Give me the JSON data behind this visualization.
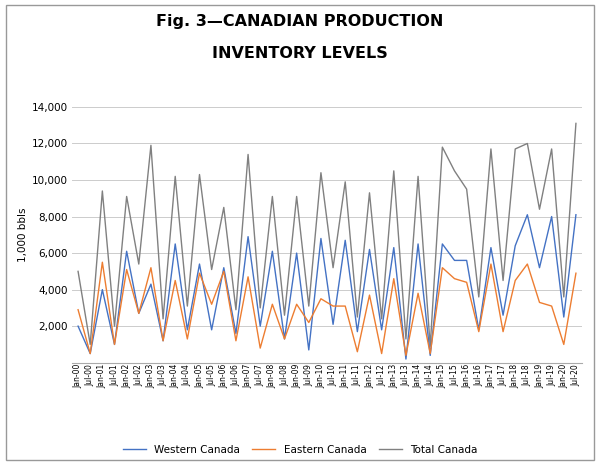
{
  "title_line1": "Fig. 3—CANADIAN PRODUCTION",
  "title_line2": "INVENTORY LEVELS",
  "ylabel": "1,000 bbls",
  "ylim": [
    0,
    14000
  ],
  "yticks": [
    2000,
    4000,
    6000,
    8000,
    10000,
    12000,
    14000
  ],
  "background_color": "#ffffff",
  "grid_color": "#cccccc",
  "western_color": "#4472C4",
  "eastern_color": "#ED7D31",
  "total_color": "#808080",
  "legend_labels": [
    "Western Canada",
    "Eastern Canada",
    "Total Canada"
  ],
  "x_labels": [
    "Jan-00",
    "Jul-00",
    "Jan-01",
    "Jul-01",
    "Jan-02",
    "Jul-02",
    "Jan-03",
    "Jul-03",
    "Jan-04",
    "Jul-04",
    "Jan-05",
    "Jul-05",
    "Jan-06",
    "Jul-06",
    "Jan-07",
    "Jul-07",
    "Jan-08",
    "Jul-08",
    "Jan-09",
    "Jul-09",
    "Jan-10",
    "Jul-10",
    "Jan-11",
    "Jul-11",
    "Jan-12",
    "Jul-12",
    "Jan-13",
    "Jul-13",
    "Jan-14",
    "Jul-14",
    "Jan-15",
    "Jul-15",
    "Jan-16",
    "Jul-16",
    "Jan-17",
    "Jul-17",
    "Jan-18",
    "Jul-18",
    "Jan-19",
    "Jul-19",
    "Jan-20",
    "Jul-20"
  ],
  "western_data": [
    2000,
    500,
    4000,
    1000,
    6100,
    2700,
    4300,
    1200,
    6500,
    1800,
    5400,
    1800,
    5200,
    1600,
    6900,
    2000,
    6100,
    1300,
    6000,
    700,
    6800,
    2100,
    6700,
    1700,
    6200,
    1800,
    6300,
    200,
    6500,
    400,
    6500,
    5600,
    5600,
    1800,
    6300,
    2600,
    6400,
    8100,
    5200,
    8000,
    2500,
    8100
  ],
  "eastern_data": [
    2900,
    500,
    5500,
    1000,
    5100,
    2700,
    5200,
    1200,
    4500,
    1300,
    4900,
    3200,
    5000,
    1200,
    4700,
    800,
    3200,
    1300,
    3200,
    2200,
    3500,
    3100,
    3100,
    600,
    3700,
    500,
    4600,
    400,
    3800,
    500,
    5200,
    4600,
    4400,
    1700,
    5400,
    1700,
    4500,
    5400,
    3300,
    3100,
    1000,
    4900
  ],
  "total_data": [
    5000,
    1000,
    9400,
    2000,
    9100,
    5400,
    11900,
    2400,
    10200,
    3100,
    10300,
    5100,
    8500,
    2900,
    11400,
    3000,
    9100,
    2600,
    9100,
    3100,
    10400,
    5200,
    9900,
    2500,
    9300,
    2400,
    10500,
    1300,
    10200,
    900,
    11800,
    10500,
    9500,
    3600,
    11700,
    4500,
    11700,
    12000,
    8400,
    11700,
    3600,
    13100
  ],
  "figsize": [
    6.0,
    4.65
  ],
  "dpi": 100
}
